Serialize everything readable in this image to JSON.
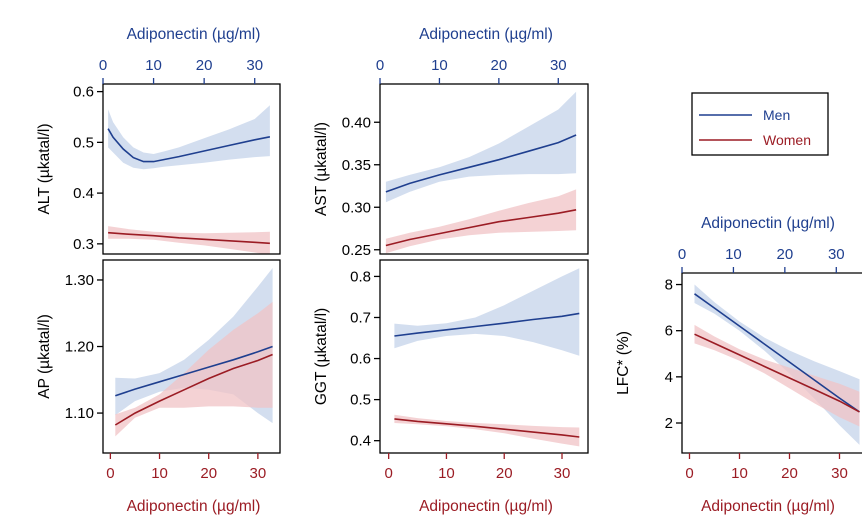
{
  "colors": {
    "men": "#1f3f8f",
    "women": "#9b1c24",
    "men_band": "#c4d3e9",
    "women_band": "#f0c3c6",
    "top_axis": "#1f3f8f",
    "bottom_axis": "#9b1c24"
  },
  "legend": {
    "placement": "right",
    "entries": [
      {
        "name": "Men",
        "color": "#1f3f8f"
      },
      {
        "name": "Women",
        "color": "#9b1c24"
      }
    ]
  },
  "chart_data": [
    {
      "id": "alt",
      "type": "line",
      "title": "",
      "xlabel_top": "Adiponectin (µg/ml)",
      "xticks_top": [
        0,
        10,
        20,
        30
      ],
      "xlim_top": [
        0,
        35
      ],
      "ylabel": "ALT (µkatal/l)",
      "yticks": [
        0.3,
        0.4,
        0.5,
        0.6
      ],
      "yticklabels": [
        "0.3",
        "0.4",
        "0.5",
        "0.6"
      ],
      "ylim": [
        0.28,
        0.615
      ],
      "series": [
        {
          "name": "Men",
          "x": [
            1,
            2,
            4,
            6,
            8,
            10,
            12,
            15,
            20,
            25,
            30,
            33
          ],
          "y": [
            0.527,
            0.51,
            0.487,
            0.47,
            0.462,
            0.462,
            0.466,
            0.472,
            0.483,
            0.494,
            0.505,
            0.511
          ],
          "lower": [
            0.49,
            0.48,
            0.46,
            0.45,
            0.447,
            0.449,
            0.452,
            0.455,
            0.46,
            0.466,
            0.471,
            0.473
          ],
          "upper": [
            0.565,
            0.54,
            0.51,
            0.49,
            0.48,
            0.477,
            0.482,
            0.49,
            0.508,
            0.526,
            0.546,
            0.573
          ]
        },
        {
          "name": "Women",
          "x": [
            1,
            5,
            10,
            15,
            20,
            25,
            30,
            33
          ],
          "y": [
            0.322,
            0.319,
            0.316,
            0.312,
            0.309,
            0.306,
            0.303,
            0.301
          ],
          "lower": [
            0.31,
            0.31,
            0.308,
            0.302,
            0.297,
            0.29,
            0.283,
            0.278
          ],
          "upper": [
            0.335,
            0.329,
            0.324,
            0.322,
            0.321,
            0.322,
            0.323,
            0.324
          ]
        }
      ]
    },
    {
      "id": "ast",
      "type": "line",
      "title": "",
      "xlabel_top": "Adiponectin (µg/ml)",
      "xticks_top": [
        0,
        10,
        20,
        30
      ],
      "xlim_top": [
        0,
        35
      ],
      "ylabel": "AST (µkatal/l)",
      "yticks": [
        0.25,
        0.3,
        0.35,
        0.4
      ],
      "yticklabels": [
        "0.25",
        "0.30",
        "0.35",
        "0.40"
      ],
      "ylim": [
        0.245,
        0.445
      ],
      "series": [
        {
          "name": "Men",
          "x": [
            1,
            5,
            10,
            15,
            20,
            25,
            30,
            33
          ],
          "y": [
            0.318,
            0.328,
            0.338,
            0.347,
            0.356,
            0.366,
            0.376,
            0.385
          ],
          "lower": [
            0.306,
            0.318,
            0.33,
            0.336,
            0.338,
            0.339,
            0.339,
            0.34
          ],
          "upper": [
            0.33,
            0.338,
            0.347,
            0.359,
            0.375,
            0.395,
            0.415,
            0.436
          ]
        },
        {
          "name": "Women",
          "x": [
            1,
            5,
            10,
            15,
            20,
            25,
            30,
            33
          ],
          "y": [
            0.255,
            0.262,
            0.269,
            0.276,
            0.283,
            0.288,
            0.293,
            0.297
          ],
          "lower": [
            0.246,
            0.254,
            0.262,
            0.267,
            0.27,
            0.271,
            0.272,
            0.273
          ],
          "upper": [
            0.263,
            0.27,
            0.277,
            0.286,
            0.296,
            0.305,
            0.313,
            0.321
          ]
        }
      ]
    },
    {
      "id": "ap",
      "type": "line",
      "title": "",
      "xlabel": "Adiponectin (µg/ml)",
      "xticks": [
        0,
        10,
        20,
        30
      ],
      "xlim": [
        -1.5,
        34.5
      ],
      "ylabel": "AP (µkatal/l)",
      "yticks": [
        1.1,
        1.2,
        1.3
      ],
      "yticklabels": [
        "1.10",
        "1.20",
        "1.30"
      ],
      "ylim": [
        1.04,
        1.33
      ],
      "series": [
        {
          "name": "Men",
          "x": [
            1,
            5,
            10,
            15,
            20,
            25,
            30,
            33
          ],
          "y": [
            1.126,
            1.136,
            1.147,
            1.158,
            1.169,
            1.18,
            1.192,
            1.2
          ],
          "lower": [
            1.097,
            1.118,
            1.132,
            1.138,
            1.135,
            1.128,
            1.1,
            1.085
          ],
          "upper": [
            1.153,
            1.152,
            1.16,
            1.18,
            1.21,
            1.245,
            1.29,
            1.318
          ]
        },
        {
          "name": "Women",
          "x": [
            1,
            5,
            10,
            15,
            20,
            25,
            30,
            33
          ],
          "y": [
            1.082,
            1.1,
            1.118,
            1.135,
            1.152,
            1.167,
            1.179,
            1.188
          ],
          "lower": [
            1.065,
            1.093,
            1.108,
            1.108,
            1.11,
            1.11,
            1.108,
            1.108
          ],
          "upper": [
            1.098,
            1.108,
            1.128,
            1.16,
            1.195,
            1.225,
            1.25,
            1.267
          ]
        }
      ]
    },
    {
      "id": "ggt",
      "type": "line",
      "title": "",
      "xlabel": "Adiponectin (µg/ml)",
      "xticks": [
        0,
        10,
        20,
        30
      ],
      "xlim": [
        -1.5,
        34.5
      ],
      "ylabel": "GGT (µkatal/l)",
      "yticks": [
        0.4,
        0.5,
        0.6,
        0.7,
        0.8
      ],
      "yticklabels": [
        "0.4",
        "0.5",
        "0.6",
        "0.7",
        "0.8"
      ],
      "ylim": [
        0.37,
        0.84
      ],
      "series": [
        {
          "name": "Men",
          "x": [
            1,
            5,
            10,
            15,
            20,
            25,
            30,
            33
          ],
          "y": [
            0.655,
            0.662,
            0.67,
            0.678,
            0.686,
            0.695,
            0.703,
            0.71
          ],
          "lower": [
            0.625,
            0.643,
            0.655,
            0.66,
            0.655,
            0.64,
            0.62,
            0.607
          ],
          "upper": [
            0.685,
            0.68,
            0.686,
            0.7,
            0.73,
            0.765,
            0.8,
            0.82
          ]
        },
        {
          "name": "Women",
          "x": [
            1,
            5,
            10,
            15,
            20,
            25,
            30,
            33
          ],
          "y": [
            0.453,
            0.447,
            0.441,
            0.435,
            0.428,
            0.421,
            0.414,
            0.409
          ],
          "lower": [
            0.443,
            0.44,
            0.435,
            0.428,
            0.418,
            0.405,
            0.393,
            0.386
          ],
          "upper": [
            0.463,
            0.455,
            0.448,
            0.443,
            0.44,
            0.436,
            0.433,
            0.432
          ]
        }
      ]
    },
    {
      "id": "lfc",
      "type": "line",
      "title": "",
      "xlabel_top": "Adiponectin (µg/ml)",
      "xticks_top": [
        0,
        10,
        20,
        30
      ],
      "xlim_top": [
        0,
        35
      ],
      "xlabel": "Adiponectin (µg/ml)",
      "xticks": [
        0,
        10,
        20,
        30
      ],
      "xlim": [
        -1.5,
        34.5
      ],
      "ylabel": "LFC* (%)",
      "yticks": [
        2,
        4,
        6,
        8
      ],
      "yticklabels": [
        "2",
        "4",
        "6",
        "8"
      ],
      "ylim": [
        0.7,
        8.5
      ],
      "series": [
        {
          "name": "Men",
          "x": [
            1,
            5,
            10,
            15,
            20,
            25,
            30,
            34
          ],
          "y": [
            7.6,
            6.98,
            6.2,
            5.42,
            4.64,
            3.86,
            3.08,
            2.48
          ],
          "lower": [
            7.2,
            6.73,
            6.0,
            5.13,
            4.14,
            3.05,
            1.9,
            1.05
          ],
          "upper": [
            8.0,
            7.23,
            6.4,
            5.7,
            5.14,
            4.67,
            4.25,
            3.9
          ]
        },
        {
          "name": "Women",
          "x": [
            1,
            5,
            10,
            15,
            20,
            25,
            30,
            34
          ],
          "y": [
            5.85,
            5.45,
            4.95,
            4.45,
            3.95,
            3.45,
            2.95,
            2.48
          ],
          "lower": [
            5.45,
            5.15,
            4.7,
            4.15,
            3.5,
            2.85,
            2.25,
            1.85
          ],
          "upper": [
            6.25,
            5.75,
            5.2,
            4.75,
            4.4,
            4.05,
            3.7,
            3.35
          ]
        }
      ]
    }
  ]
}
